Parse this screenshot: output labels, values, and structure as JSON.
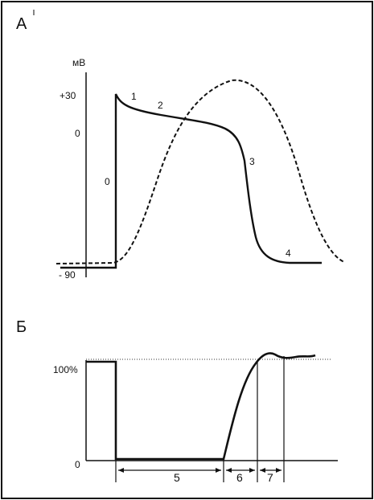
{
  "panels": {
    "a": {
      "label": "А",
      "unit": "мВ",
      "ticks": {
        "top": "+30",
        "zero": "0",
        "bottom": "- 90"
      },
      "phases": [
        "0",
        "1",
        "2",
        "3",
        "4"
      ]
    },
    "b": {
      "label": "Б",
      "ticks": {
        "top": "100%",
        "zero": "0"
      },
      "segments": [
        "5",
        "6",
        "7"
      ]
    }
  }
}
